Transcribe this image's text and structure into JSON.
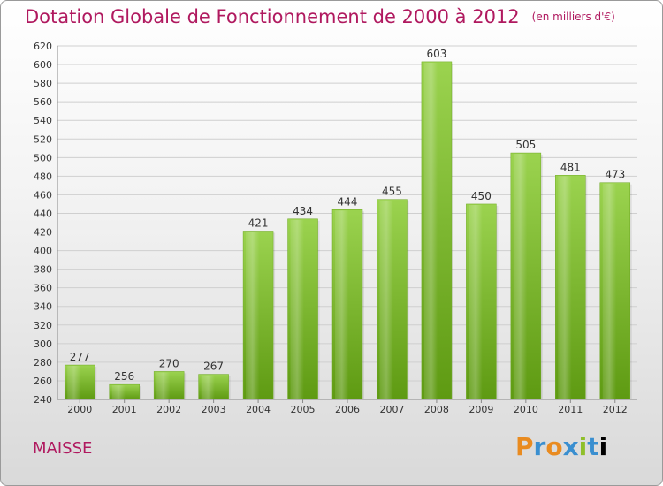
{
  "title": "Dotation Globale de Fonctionnement de 2000 à 2012",
  "unit": "(en milliers d'€)",
  "commune": "MAISSE",
  "logo_text": "Proxiti",
  "chart_data": {
    "type": "bar",
    "categories": [
      "2000",
      "2001",
      "2002",
      "2003",
      "2004",
      "2005",
      "2006",
      "2007",
      "2008",
      "2009",
      "2010",
      "2011",
      "2012"
    ],
    "values": [
      277,
      256,
      270,
      267,
      421,
      434,
      444,
      455,
      603,
      450,
      505,
      481,
      473
    ],
    "yticks": [
      240,
      260,
      280,
      300,
      320,
      340,
      360,
      380,
      400,
      420,
      440,
      460,
      480,
      500,
      520,
      540,
      560,
      580,
      600,
      620
    ],
    "ylim": [
      240,
      620
    ],
    "grid": true,
    "bar_color": "#8dc63f"
  }
}
